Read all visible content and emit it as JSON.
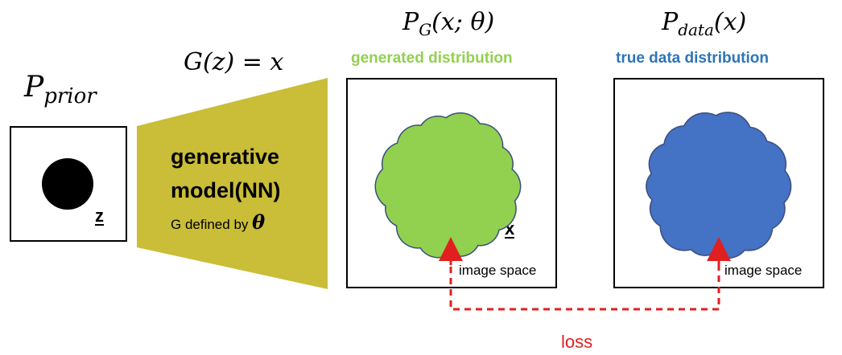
{
  "prior": {
    "label_main": "P",
    "label_sub": "prior",
    "z_label": "z"
  },
  "generator": {
    "equation": "G(z) = x",
    "title_line1": "generative",
    "title_line2": "model(NN)",
    "caption_prefix": "G defined by",
    "caption_symbol": "θ",
    "color": "#CABD38"
  },
  "generated": {
    "math_main": "P",
    "math_sub": "G",
    "math_args": "(x; θ)",
    "label": "generated distribution",
    "label_color": "#92D050",
    "blob_color": "#92D050",
    "x_label": "x",
    "space_label": "image space"
  },
  "true_data": {
    "math_main": "P",
    "math_sub": "data",
    "math_args": "(x)",
    "label": "true data distribution",
    "label_color": "#2E75B6",
    "blob_color": "#4472C4",
    "space_label": "image space"
  },
  "loss": {
    "label": "loss",
    "color": "#E02020"
  }
}
